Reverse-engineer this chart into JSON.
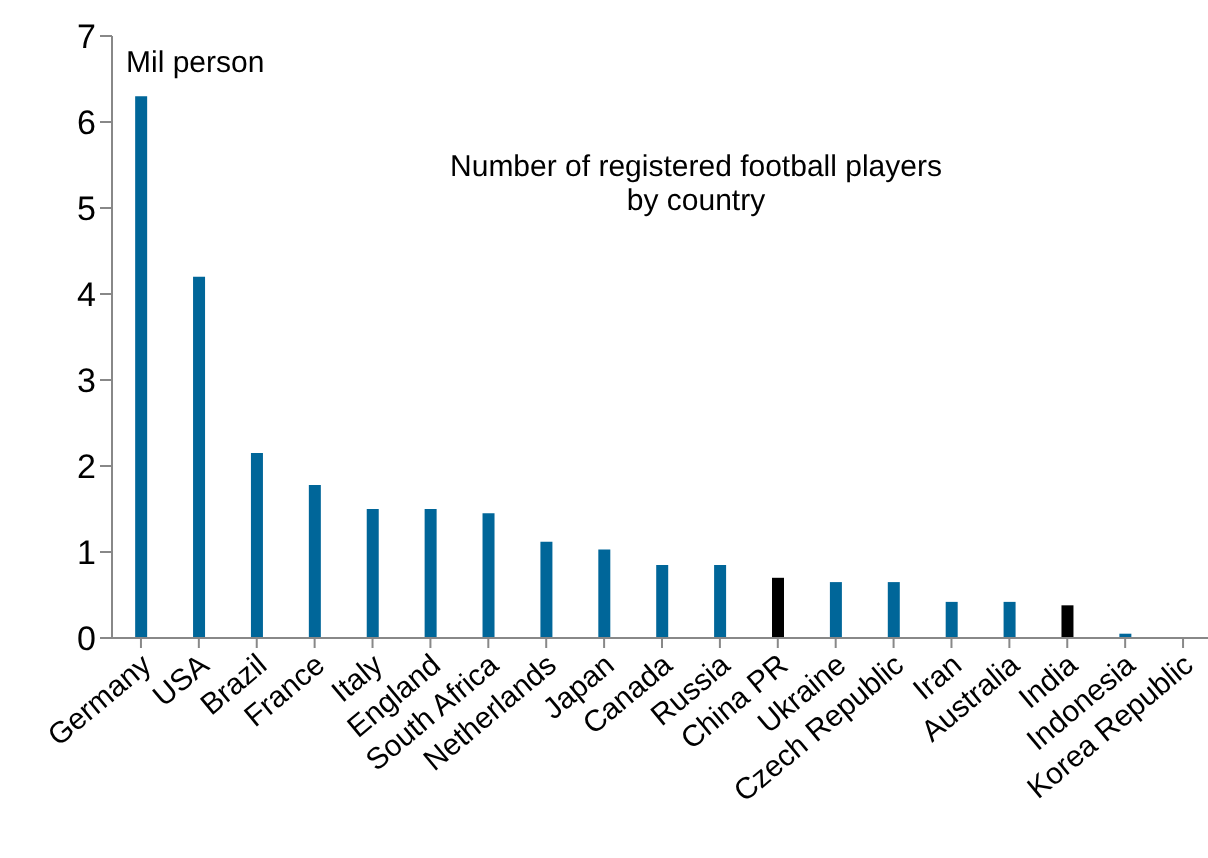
{
  "chart_data": {
    "type": "bar",
    "title": "Number of registered football players\nby country",
    "ylabel": "Mil person",
    "categories": [
      "Germany",
      "USA",
      "Brazil",
      "France",
      "Italy",
      "England",
      "South Africa",
      "Netherlands",
      "Japan",
      "Canada",
      "Russia",
      "China PR",
      "Ukraine",
      "Czech Republic",
      "Iran",
      "Australia",
      "India",
      "Indonesia",
      "Korea Republic"
    ],
    "values": [
      6.3,
      4.2,
      2.15,
      1.78,
      1.5,
      1.5,
      1.45,
      1.12,
      1.03,
      0.85,
      0.85,
      0.7,
      0.65,
      0.65,
      0.42,
      0.42,
      0.38,
      0.05,
      0
    ],
    "colors": [
      "#006699",
      "#006699",
      "#006699",
      "#006699",
      "#006699",
      "#006699",
      "#006699",
      "#006699",
      "#006699",
      "#006699",
      "#006699",
      "#000000",
      "#006699",
      "#006699",
      "#006699",
      "#006699",
      "#000000",
      "#006699",
      "#006699"
    ],
    "ylim": [
      0,
      7
    ],
    "yticks": [
      0,
      1,
      2,
      3,
      4,
      5,
      6,
      7
    ],
    "grid": false,
    "legend": false
  }
}
